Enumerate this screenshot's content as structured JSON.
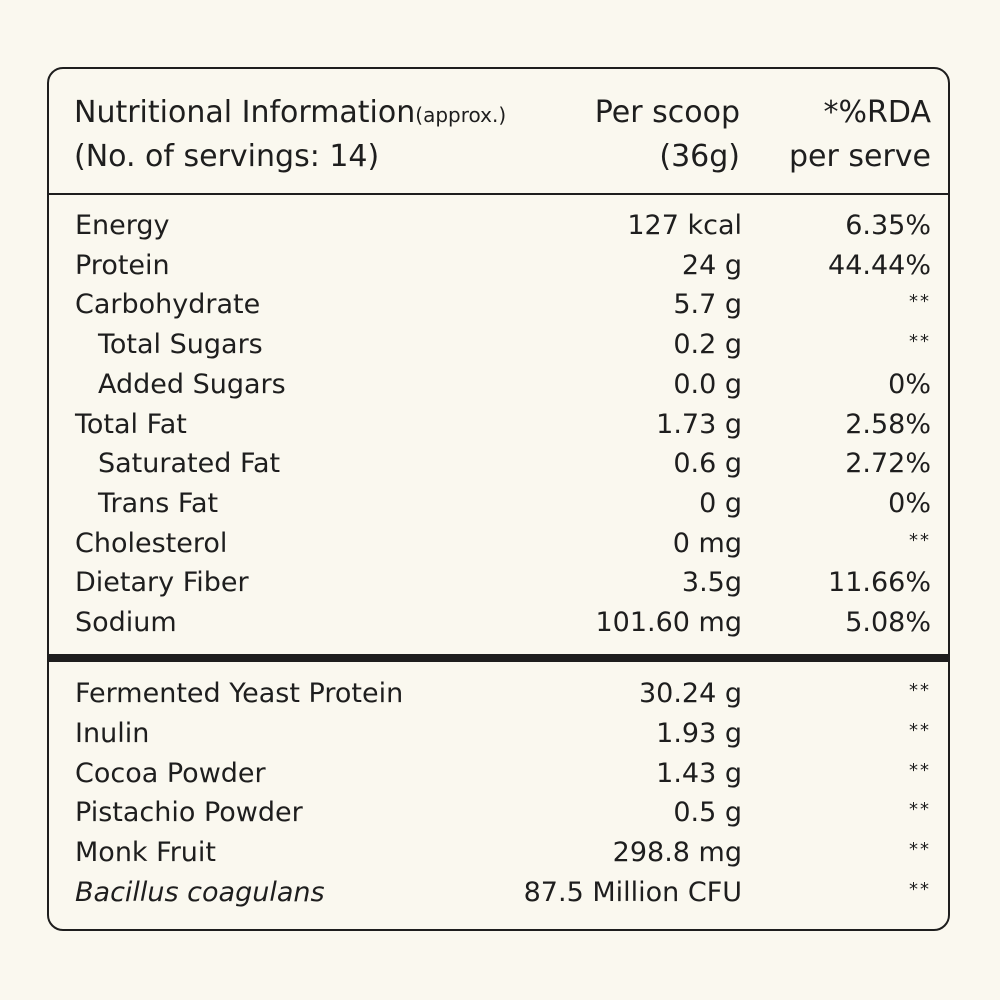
{
  "header": {
    "title": "Nutritional Information",
    "title_suffix": "(approx.)",
    "servings": "(No. of servings: 14)",
    "per_scoop_line1": "Per scoop",
    "per_scoop_line2": "(36g)",
    "rda_line1": "*%RDA",
    "rda_line2": "per serve"
  },
  "nutrients": [
    {
      "label": "Energy",
      "value": "127 kcal",
      "rda": "6.35%"
    },
    {
      "label": "Protein",
      "value": "24 g",
      "rda": "44.44%"
    },
    {
      "label": "Carbohydrate",
      "value": "5.7 g",
      "rda": "**"
    },
    {
      "label": "Total Sugars",
      "value": "0.2 g",
      "rda": "**"
    },
    {
      "label": "Added Sugars",
      "value": "0.0 g",
      "rda": "0%"
    },
    {
      "label": "Total Fat",
      "value": "1.73 g",
      "rda": "2.58%"
    },
    {
      "label": "Saturated Fat",
      "value": "0.6 g",
      "rda": "2.72%"
    },
    {
      "label": "Trans Fat",
      "value": "0 g",
      "rda": "0%"
    },
    {
      "label": "Cholesterol",
      "value": "0 mg",
      "rda": "**"
    },
    {
      "label": "Dietary Fiber",
      "value": "3.5g",
      "rda": "11.66%"
    },
    {
      "label": "Sodium",
      "value": "101.60 mg",
      "rda": "5.08%"
    }
  ],
  "ingredients": [
    {
      "label": "Fermented Yeast Protein",
      "value": "30.24 g",
      "rda": "**"
    },
    {
      "label": "Inulin",
      "value": "1.93 g",
      "rda": "**"
    },
    {
      "label": "Cocoa Powder",
      "value": "1.43 g",
      "rda": "**"
    },
    {
      "label": "Pistachio Powder",
      "value": "0.5 g",
      "rda": "**"
    },
    {
      "label": "Monk Fruit",
      "value": "298.8 mg",
      "rda": "**"
    },
    {
      "label": "Bacillus coagulans",
      "value": "87.5 Million CFU",
      "rda": "**"
    }
  ],
  "colors": {
    "background": "#faf8ef",
    "ink": "#1e1e1e"
  }
}
